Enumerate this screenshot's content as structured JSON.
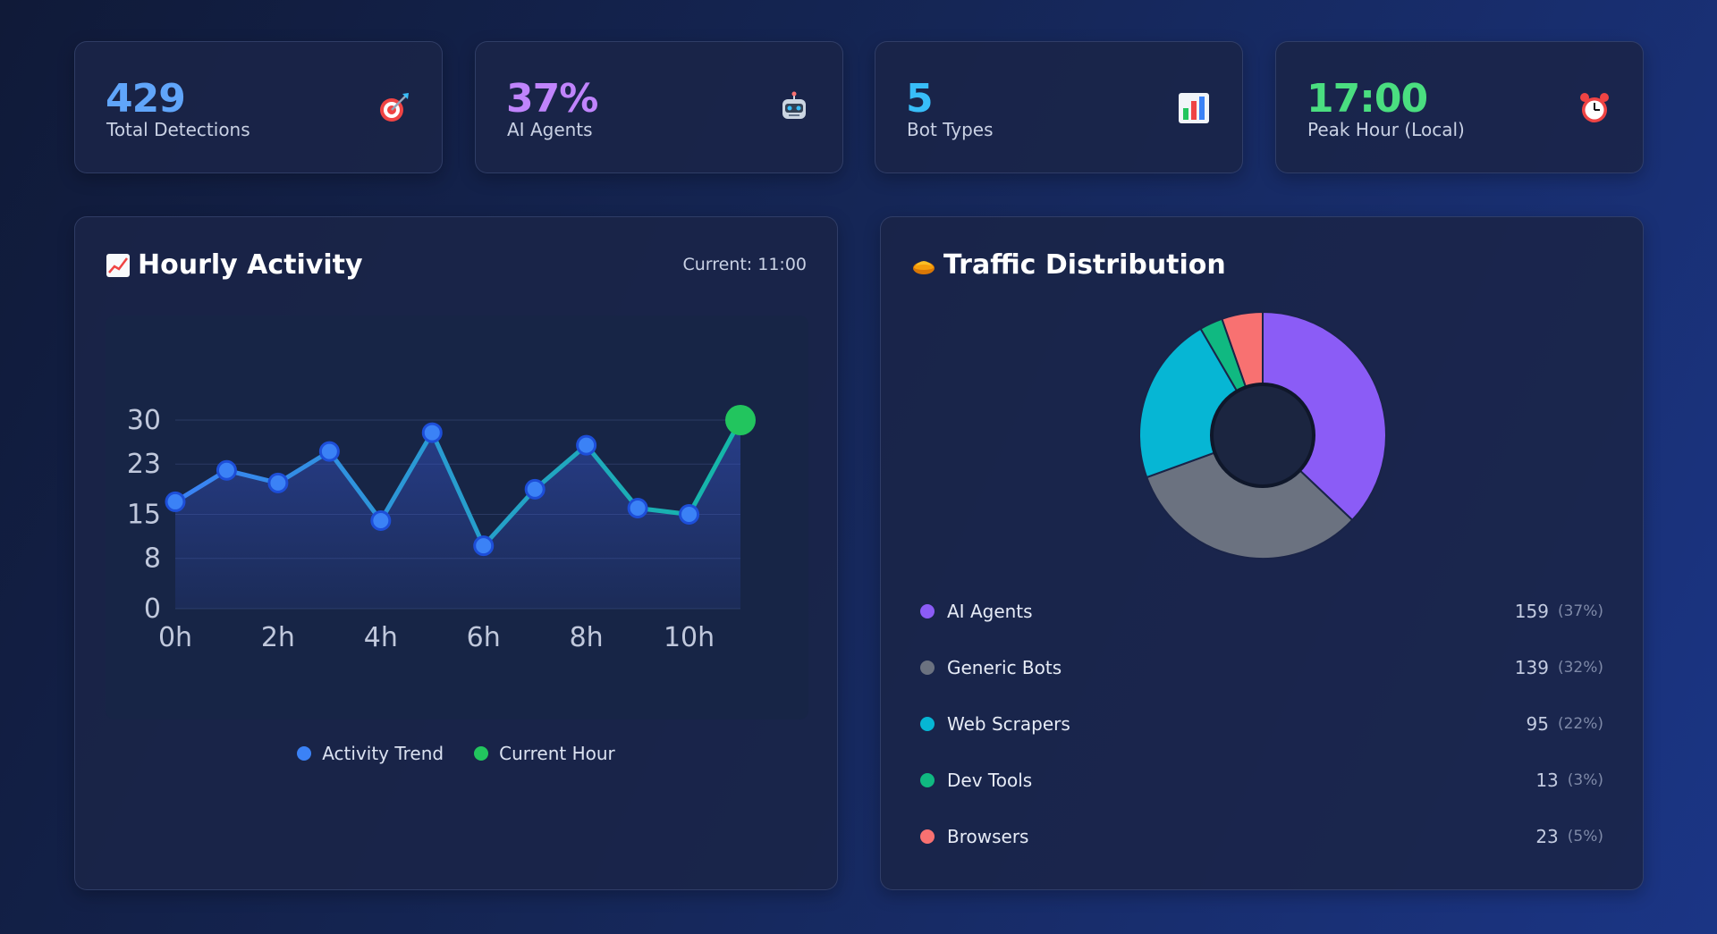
{
  "stats": [
    {
      "value": "429",
      "label": "Total Detections",
      "color": "#60a5fa",
      "icon": "target-icon"
    },
    {
      "value": "37%",
      "label": "AI Agents",
      "color": "#c084fc",
      "icon": "robot-icon"
    },
    {
      "value": "5",
      "label": "Bot Types",
      "color": "#38bdf8",
      "icon": "bar-chart-icon"
    },
    {
      "value": "17:00",
      "label": "Peak Hour (Local)",
      "color": "#4ade80",
      "icon": "alarm-clock-icon"
    }
  ],
  "hourly": {
    "title": "Hourly Activity",
    "icon": "chart-increasing-icon",
    "current_label": "Current: 11:00",
    "legend": [
      {
        "label": "Activity Trend",
        "color": "#3b82f6"
      },
      {
        "label": "Current Hour",
        "color": "#22c55e"
      }
    ]
  },
  "chart_data": {
    "type": "line",
    "title": "Hourly Activity",
    "x": [
      0,
      1,
      2,
      3,
      4,
      5,
      6,
      7,
      8,
      9,
      10,
      11
    ],
    "xticks": [
      "0h",
      "2h",
      "4h",
      "6h",
      "8h",
      "10h"
    ],
    "yticks": [
      "0",
      "8",
      "15",
      "23",
      "30"
    ],
    "ylim": [
      0,
      30
    ],
    "series": [
      {
        "name": "Activity Trend",
        "values": [
          17,
          22,
          20,
          25,
          14,
          28,
          10,
          19,
          26,
          16,
          15,
          30
        ],
        "color": "#3b82f6"
      }
    ],
    "highlight": {
      "name": "Current Hour",
      "x": 11,
      "y": 30,
      "color": "#22c55e"
    },
    "grid": true
  },
  "distribution": {
    "title": "Traffic Distribution",
    "icon": "pie-icon",
    "items": [
      {
        "label": "AI Agents",
        "count": "159",
        "pct": "(37%)",
        "value": 159,
        "color": "#8b5cf6"
      },
      {
        "label": "Generic Bots",
        "count": "139",
        "pct": "(32%)",
        "value": 139,
        "color": "#6b7280"
      },
      {
        "label": "Web Scrapers",
        "count": "95",
        "pct": "(22%)",
        "value": 95,
        "color": "#06b6d4"
      },
      {
        "label": "Dev Tools",
        "count": "13",
        "pct": "(3%)",
        "value": 13,
        "color": "#10b981"
      },
      {
        "label": "Browsers",
        "count": "23",
        "pct": "(5%)",
        "value": 23,
        "color": "#f87171"
      }
    ]
  }
}
